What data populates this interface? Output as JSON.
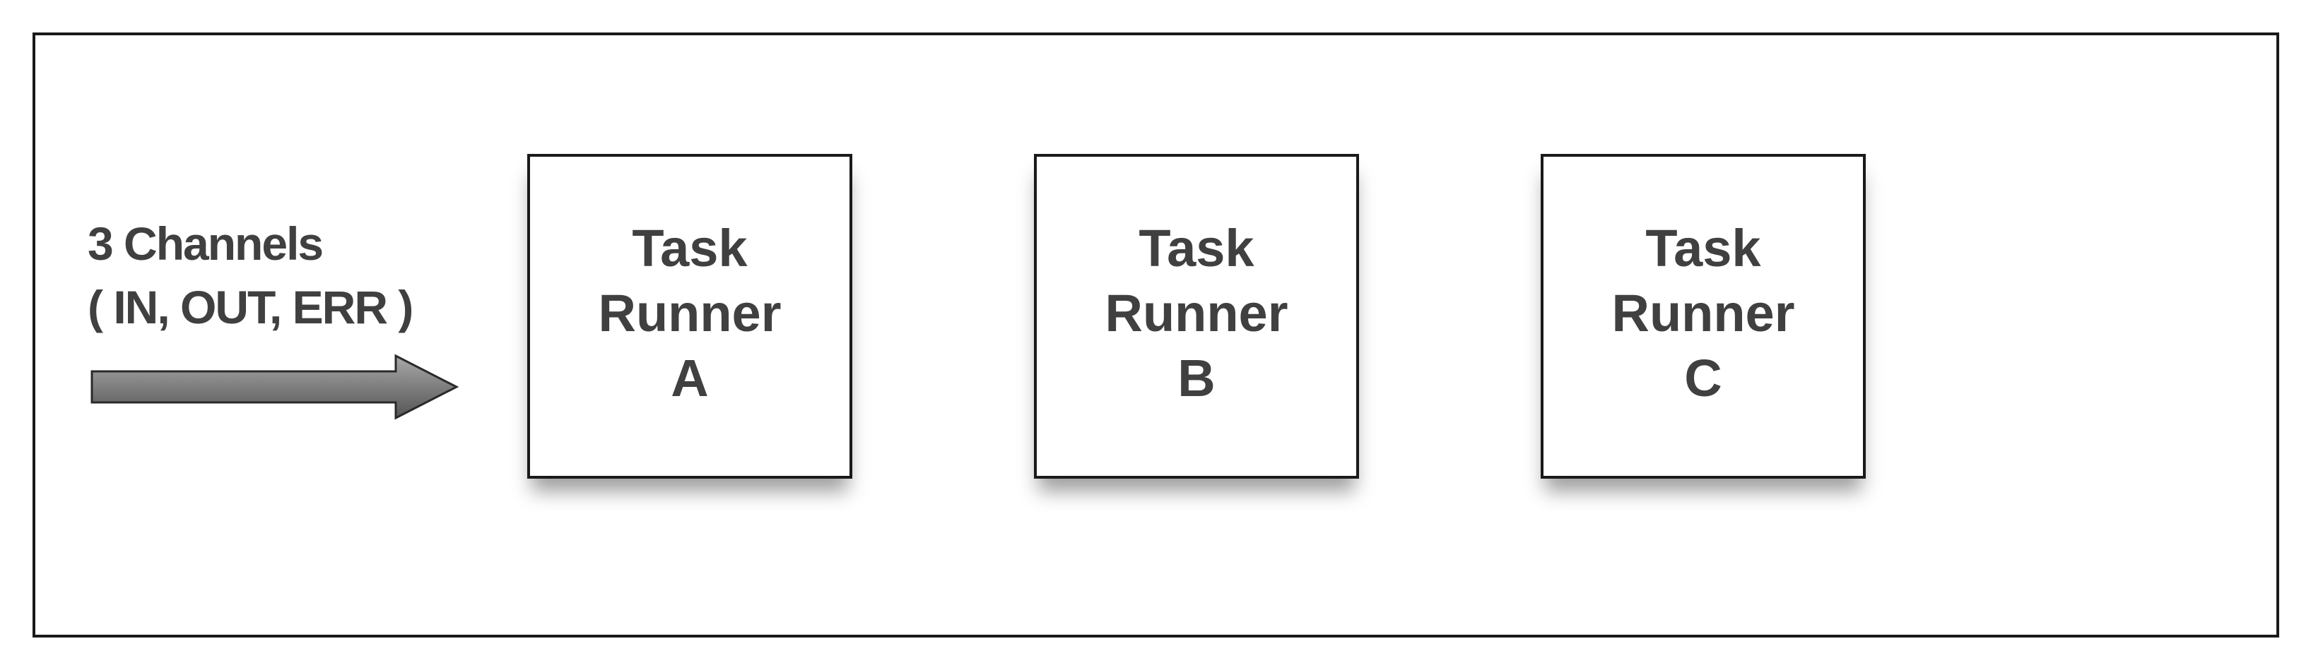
{
  "channel_label": {
    "line1": "3 Channels",
    "line2": "( IN, OUT, ERR )"
  },
  "arrow": {
    "icon": "right-arrow-icon",
    "fill_top": "#a8a8a8",
    "fill_bottom": "#555555",
    "stroke": "#2a2a2a"
  },
  "task_runners": [
    {
      "line1": "Task",
      "line2": "Runner",
      "line3": "A"
    },
    {
      "line1": "Task",
      "line2": "Runner",
      "line3": "B"
    },
    {
      "line1": "Task",
      "line2": "Runner",
      "line3": "C"
    }
  ],
  "colors": {
    "border": "#1a1a1a",
    "text": "#404040",
    "background": "#ffffff"
  }
}
